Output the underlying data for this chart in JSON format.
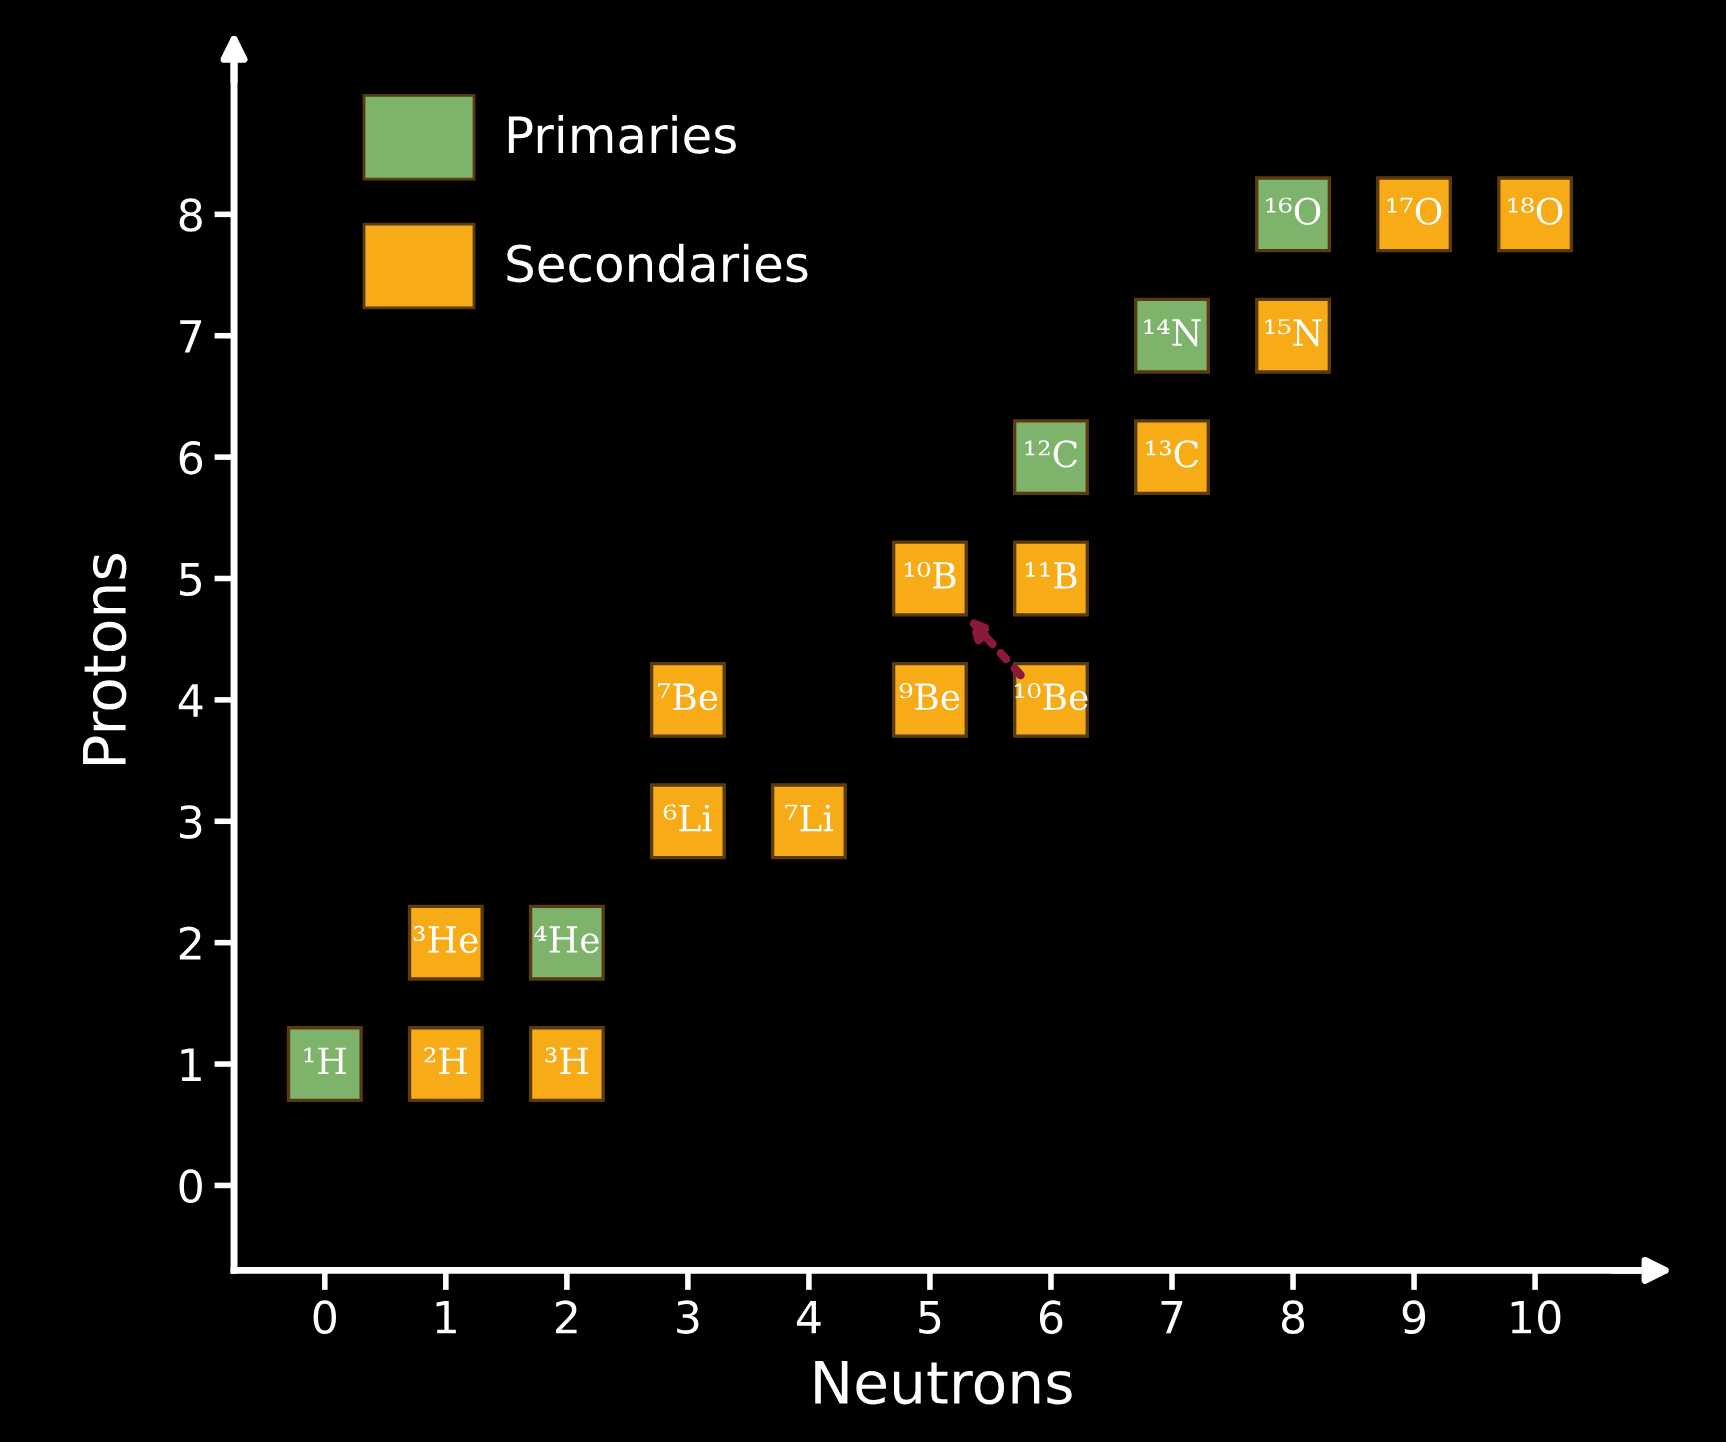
{
  "chart_data": {
    "type": "scatter",
    "xlabel": "Neutrons",
    "ylabel": "Protons",
    "xlim": [
      -0.75,
      10.95
    ],
    "ylim": [
      -0.7,
      9.35
    ],
    "xticks": [
      0,
      1,
      2,
      3,
      4,
      5,
      6,
      7,
      8,
      9,
      10
    ],
    "yticks": [
      0,
      1,
      2,
      3,
      4,
      5,
      6,
      7,
      8
    ],
    "marker": "square",
    "grid": false,
    "legend": "top left",
    "series": [
      {
        "name": "Primaries",
        "color": "#7db36a",
        "x": [
          0,
          2,
          6,
          7,
          8
        ],
        "values": [
          1,
          2,
          6,
          7,
          8
        ]
      },
      {
        "name": "Secondaries",
        "color": "#f6ab17",
        "x": [
          1,
          2,
          1,
          3,
          4,
          3,
          5,
          6,
          5,
          6,
          7,
          8,
          9,
          10
        ],
        "values": [
          1,
          1,
          2,
          3,
          3,
          4,
          4,
          4,
          5,
          5,
          6,
          7,
          8,
          8
        ]
      }
    ],
    "annotations": [
      {
        "text": "¹H",
        "x": 0,
        "y": 1
      },
      {
        "text": "²H",
        "x": 1,
        "y": 1
      },
      {
        "text": "³H",
        "x": 2,
        "y": 1
      },
      {
        "text": "³He",
        "x": 1,
        "y": 2
      },
      {
        "text": "⁴He",
        "x": 2,
        "y": 2
      },
      {
        "text": "⁶Li",
        "x": 3,
        "y": 3
      },
      {
        "text": "⁷Li",
        "x": 4,
        "y": 3
      },
      {
        "text": "⁷Be",
        "x": 3,
        "y": 4
      },
      {
        "text": "⁹Be",
        "x": 5,
        "y": 4
      },
      {
        "text": "¹⁰Be",
        "x": 6,
        "y": 4
      },
      {
        "text": "¹⁰B",
        "x": 5,
        "y": 5
      },
      {
        "text": "¹¹B",
        "x": 6,
        "y": 5
      },
      {
        "text": "¹²C",
        "x": 6,
        "y": 6
      },
      {
        "text": "¹³C",
        "x": 7,
        "y": 6
      },
      {
        "text": "¹⁴N",
        "x": 7,
        "y": 7
      },
      {
        "text": "¹⁵N",
        "x": 8,
        "y": 7
      },
      {
        "text": "¹⁶O",
        "x": 8,
        "y": 8
      },
      {
        "text": "¹⁷O",
        "x": 9,
        "y": 8
      },
      {
        "text": "¹⁸O",
        "x": 10,
        "y": 8
      }
    ]
  }
}
